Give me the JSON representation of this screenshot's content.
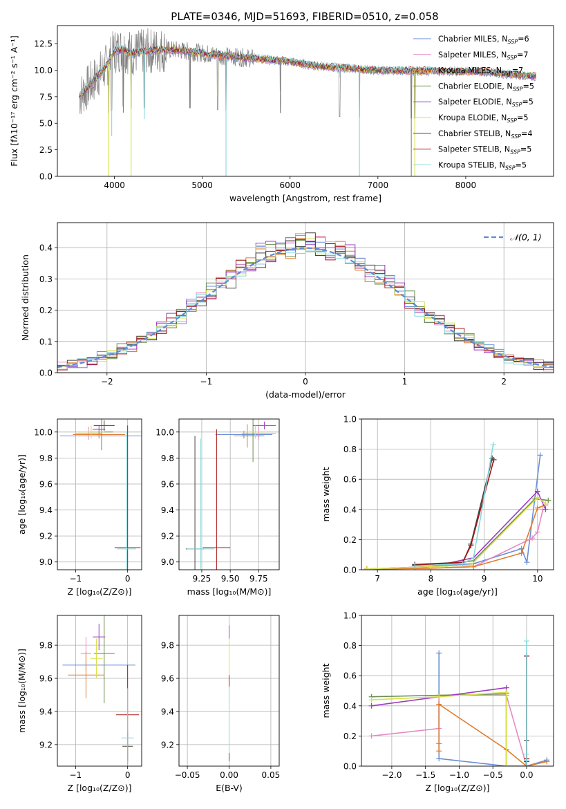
{
  "figure_title": "PLATE=0346, MJD=51693, FIBERID=0510, z=0.058",
  "colors": {
    "Chabrier MILES": "#6a8ed8",
    "Salpeter MILES": "#e58ac4",
    "Kroupa MILES": "#e07b2c",
    "Chabrier ELODIE": "#6b8e4e",
    "Salpeter ELODIE": "#9b3cc0",
    "Kroupa ELODIE": "#d8e04a",
    "Chabrier STELIB": "#444444",
    "Salpeter STELIB": "#a81818",
    "Kroupa STELIB": "#86d8dc",
    "gaussian": "#5b8ad6"
  },
  "chart_data": [
    {
      "type": "line",
      "panel": "spectrum",
      "title": "PLATE=0346, MJD=51693, FIBERID=0510, z=0.058",
      "xlabel": "wavelength [Angstrom, rest frame]",
      "ylabel": "Flux [fλ10⁻¹⁷ erg cm⁻² s⁻¹ A⁻¹]",
      "xlim": [
        3350,
        9000
      ],
      "ylim": [
        0,
        14.2
      ],
      "xticks": [
        4000,
        5000,
        6000,
        7000,
        8000
      ],
      "yticks": [
        0.0,
        2.5,
        5.0,
        7.5,
        10.0,
        12.5
      ],
      "legend_position": "top-right",
      "legend": [
        {
          "label": "Chabrier MILES, N",
          "sub": "SSP",
          "tail": "=6"
        },
        {
          "label": "Salpeter MILES, N",
          "sub": "SSP",
          "tail": "=7"
        },
        {
          "label": "Kroupa MILES, N",
          "sub": "SSP",
          "tail": "=7"
        },
        {
          "label": "Chabrier ELODIE, N",
          "sub": "SSP",
          "tail": "=5"
        },
        {
          "label": "Salpeter ELODIE, N",
          "sub": "SSP",
          "tail": "=5"
        },
        {
          "label": "Kroupa ELODIE, N",
          "sub": "SSP",
          "tail": "=5"
        },
        {
          "label": "Chabrier STELIB, N",
          "sub": "SSP",
          "tail": "=4"
        },
        {
          "label": "Salpeter STELIB, N",
          "sub": "SSP",
          "tail": "=5"
        },
        {
          "label": "Kroupa STELIB, N",
          "sub": "SSP",
          "tail": "=5"
        }
      ],
      "continuum": {
        "x": [
          3600,
          3700,
          3800,
          3900,
          4000,
          4100,
          4200,
          4300,
          4400,
          4500,
          4700,
          5000,
          5300,
          5600,
          6000,
          6300,
          6600,
          7000,
          7400,
          7800,
          8200,
          8500,
          8800
        ],
        "y": [
          7.5,
          8.4,
          9.4,
          10.3,
          11.8,
          12.0,
          11.6,
          11.7,
          11.8,
          11.9,
          11.9,
          11.6,
          11.3,
          11.1,
          10.8,
          10.4,
          10.2,
          10.0,
          9.95,
          9.9,
          9.85,
          9.6,
          9.4
        ]
      },
      "absorption_lines": [
        {
          "x": 3934,
          "y": 0.0
        },
        {
          "x": 3969,
          "y": 3.8
        },
        {
          "x": 4101,
          "y": 6.0
        },
        {
          "x": 4190,
          "y": 0.0
        },
        {
          "x": 4340,
          "y": 5.4
        },
        {
          "x": 4861,
          "y": 6.4
        },
        {
          "x": 5175,
          "y": 7.6
        },
        {
          "x": 5270,
          "y": 0.0
        },
        {
          "x": 5890,
          "y": 8.0
        },
        {
          "x": 6563,
          "y": 9.3
        },
        {
          "x": 6790,
          "y": 0.0
        },
        {
          "x": 7380,
          "y": 0.0
        },
        {
          "x": 7420,
          "y": 0.0
        }
      ]
    },
    {
      "type": "line",
      "panel": "residual_histogram",
      "xlabel": "(data-model)/error",
      "ylabel": "Normed distribution",
      "xlim": [
        -2.5,
        2.5
      ],
      "ylim": [
        0,
        0.48
      ],
      "xticks": [
        -2,
        -1,
        0,
        1,
        2
      ],
      "yticks": [
        0.0,
        0.1,
        0.2,
        0.3,
        0.4
      ],
      "grid": true,
      "legend_position": "top-right",
      "gaussian_label": "𝒩(0, 1)",
      "bin_width": 0.1
    },
    {
      "type": "scatter",
      "panel": "age_vs_Z",
      "xlabel": "Z [log₁₀(Z/Z⊙)]",
      "ylabel": "age  [log₁₀(age/yr)]",
      "xlim": [
        -1.35,
        0.27
      ],
      "ylim": [
        8.94,
        10.1
      ],
      "xticks": [
        -1,
        0
      ],
      "yticks": [
        9.0,
        9.2,
        9.4,
        9.6,
        9.8,
        10.0
      ],
      "grid": true,
      "points": [
        {
          "s": "Chabrier MILES",
          "x": -0.5,
          "y": 9.97,
          "xerr": 0.8,
          "yerr": 0.03
        },
        {
          "s": "Salpeter MILES",
          "x": -0.75,
          "y": 9.99,
          "xerr": 0.25,
          "yerr": 0.05
        },
        {
          "s": "Kroupa MILES",
          "x": -0.55,
          "y": 9.98,
          "xerr": 0.5,
          "yerr": 0.03
        },
        {
          "s": "Chabrier ELODIE",
          "x": -0.5,
          "y": 10.0,
          "xerr": 0.22,
          "yerr": 0.14
        },
        {
          "s": "Salpeter ELODIE",
          "x": -0.55,
          "y": 10.02,
          "xerr": 0.12,
          "yerr": 0.03
        },
        {
          "s": "Kroupa ELODIE",
          "x": -0.7,
          "y": 10.0,
          "xerr": 0.25,
          "yerr": 0.05
        },
        {
          "s": "Chabrier STELIB",
          "x": -0.45,
          "y": 10.05,
          "xerr": 0.2,
          "yerr": 0.04
        },
        {
          "s": "Salpeter STELIB",
          "x": 0.0,
          "y": 9.11,
          "xerr": 0.25,
          "yerr": 0.94
        },
        {
          "s": "Kroupa STELIB",
          "x": -0.02,
          "y": 9.1,
          "xerr": 0.18,
          "yerr": 0.9
        }
      ]
    },
    {
      "type": "scatter",
      "panel": "age_vs_mass",
      "xlabel": "mass [log₁₀(M/M⊙)]",
      "ylabel": "",
      "xlim": [
        9.05,
        9.93
      ],
      "ylim": [
        8.94,
        10.1
      ],
      "xticks": [
        9.25,
        9.5,
        9.75
      ],
      "yticks": [
        9.0,
        9.2,
        9.4,
        9.6,
        9.8,
        10.0
      ],
      "grid": true,
      "points": [
        {
          "s": "Chabrier MILES",
          "x": 9.62,
          "y": 9.98,
          "xerr": 0.25,
          "yerr": 0.03
        },
        {
          "s": "Salpeter MILES",
          "x": 9.75,
          "y": 9.99,
          "xerr": 0.15,
          "yerr": 0.05
        },
        {
          "s": "Kroupa MILES",
          "x": 9.65,
          "y": 9.97,
          "xerr": 0.12,
          "yerr": 0.09
        },
        {
          "s": "Chabrier ELODIE",
          "x": 9.7,
          "y": 9.97,
          "xerr": 0.1,
          "yerr": 0.2
        },
        {
          "s": "Salpeter ELODIE",
          "x": 9.8,
          "y": 10.05,
          "xerr": 0.1,
          "yerr": 0.03
        },
        {
          "s": "Kroupa ELODIE",
          "x": 9.72,
          "y": 10.0,
          "xerr": 0.1,
          "yerr": 0.05
        },
        {
          "s": "Chabrier STELIB",
          "x": 9.19,
          "y": 9.1,
          "xerr": 0.08,
          "yerr": 0.87
        },
        {
          "s": "Salpeter STELIB",
          "x": 9.38,
          "y": 9.11,
          "xerr": 0.12,
          "yerr": 0.91
        },
        {
          "s": "Kroupa STELIB",
          "x": 9.24,
          "y": 9.1,
          "xerr": 0.12,
          "yerr": 0.85
        }
      ]
    },
    {
      "type": "line",
      "panel": "mass_weight_vs_age",
      "xlabel": "age  [log₁₀(age/yr)]",
      "ylabel": "mass weight",
      "xlim": [
        6.7,
        10.3
      ],
      "ylim": [
        0,
        1.0
      ],
      "xticks": [
        7,
        8,
        9,
        10
      ],
      "yticks": [
        0.0,
        0.2,
        0.4,
        0.6,
        0.8,
        1.0
      ],
      "grid": true,
      "series": [
        {
          "name": "Chabrier MILES",
          "x": [
            6.8,
            7.7,
            8.3,
            8.8,
            9.7,
            9.8,
            10.05
          ],
          "y": [
            0.005,
            0.01,
            0.03,
            0.04,
            0.14,
            0.05,
            0.76
          ]
        },
        {
          "name": "Salpeter MILES",
          "x": [
            6.8,
            8.0,
            8.8,
            9.9,
            10.0,
            10.1
          ],
          "y": [
            0.005,
            0.01,
            0.02,
            0.21,
            0.25,
            0.4
          ]
        },
        {
          "name": "Kroupa MILES",
          "x": [
            6.8,
            8.0,
            8.8,
            9.7,
            10.0,
            10.15
          ],
          "y": [
            0.005,
            0.01,
            0.02,
            0.11,
            0.41,
            0.43
          ]
        },
        {
          "name": "Chabrier ELODIE",
          "x": [
            6.8,
            8.0,
            8.8,
            9.95,
            10.2
          ],
          "y": [
            0.005,
            0.02,
            0.06,
            0.47,
            0.46
          ]
        },
        {
          "name": "Salpeter ELODIE",
          "x": [
            6.8,
            8.0,
            8.8,
            10.0,
            10.15
          ],
          "y": [
            0.005,
            0.02,
            0.08,
            0.52,
            0.4
          ]
        },
        {
          "name": "Kroupa ELODIE",
          "x": [
            6.8,
            8.0,
            8.75,
            10.0,
            10.15
          ],
          "y": [
            0.005,
            0.02,
            0.03,
            0.48,
            0.44
          ]
        },
        {
          "name": "Chabrier STELIB",
          "x": [
            7.7,
            8.6,
            8.75,
            9.15
          ],
          "y": [
            0.035,
            0.05,
            0.17,
            0.74
          ]
        },
        {
          "name": "Salpeter STELIB",
          "x": [
            7.7,
            8.6,
            8.75,
            9.18
          ],
          "y": [
            0.03,
            0.05,
            0.16,
            0.73
          ]
        },
        {
          "name": "Kroupa STELIB",
          "x": [
            7.7,
            8.6,
            8.8,
            9.17
          ],
          "y": [
            0.025,
            0.04,
            0.08,
            0.83
          ]
        }
      ]
    },
    {
      "type": "scatter",
      "panel": "mass_vs_Z",
      "xlabel": "Z [log₁₀(Z/Z⊙)]",
      "ylabel": "mass [log₁₀(M/M⊙)]",
      "xlim": [
        -1.35,
        0.27
      ],
      "ylim": [
        9.07,
        9.98
      ],
      "xticks": [
        -1,
        0
      ],
      "yticks": [
        9.2,
        9.4,
        9.6,
        9.8
      ],
      "grid": true,
      "points": [
        {
          "s": "Chabrier MILES",
          "x": -0.55,
          "y": 9.68,
          "xerr": 0.7,
          "yerr": 0.0
        },
        {
          "s": "Salpeter MILES",
          "x": -0.8,
          "y": 9.75,
          "xerr": 0.1,
          "yerr": 0.1
        },
        {
          "s": "Kroupa MILES",
          "x": -0.8,
          "y": 9.62,
          "xerr": 0.35,
          "yerr": 0.14
        },
        {
          "s": "Chabrier ELODIE",
          "x": -0.45,
          "y": 9.75,
          "xerr": 0.2,
          "yerr": 0.3
        },
        {
          "s": "Salpeter ELODIE",
          "x": -0.55,
          "y": 9.85,
          "xerr": 0.12,
          "yerr": 0.08
        },
        {
          "s": "Kroupa ELODIE",
          "x": -0.6,
          "y": 9.72,
          "xerr": 0.12,
          "yerr": 0.12
        },
        {
          "s": "Chabrier STELIB",
          "x": 0.0,
          "y": 9.19,
          "xerr": 0.1,
          "yerr": 0.09
        },
        {
          "s": "Salpeter STELIB",
          "x": 0.0,
          "y": 9.38,
          "xerr": 0.22,
          "yerr": 0.3
        },
        {
          "s": "Kroupa STELIB",
          "x": 0.0,
          "y": 9.24,
          "xerr": 0.12,
          "yerr": 0.3
        }
      ]
    },
    {
      "type": "scatter",
      "panel": "mass_vs_EBV",
      "xlabel": "E(B-V)",
      "ylabel": "",
      "xlim": [
        -0.06,
        0.06
      ],
      "ylim": [
        9.07,
        9.98
      ],
      "xticks": [
        -0.05,
        0.0,
        0.05
      ],
      "yticks": [
        9.2,
        9.4,
        9.6,
        9.8
      ],
      "grid": true,
      "points": [
        {
          "s": "Chabrier MILES",
          "x": 0.0,
          "y": 9.68,
          "xerr": 0.0,
          "yerr": 0.17
        },
        {
          "s": "Salpeter MILES",
          "x": 0.0,
          "y": 9.75,
          "xerr": 0.0,
          "yerr": 0.1
        },
        {
          "s": "Kroupa MILES",
          "x": 0.0,
          "y": 9.62,
          "xerr": 0.0,
          "yerr": 0.14
        },
        {
          "s": "Chabrier ELODIE",
          "x": 0.0,
          "y": 9.72,
          "xerr": 0.0,
          "yerr": 0.16
        },
        {
          "s": "Salpeter ELODIE",
          "x": 0.0,
          "y": 9.85,
          "xerr": 0.0,
          "yerr": 0.07
        },
        {
          "s": "Kroupa ELODIE",
          "x": 0.0,
          "y": 9.72,
          "xerr": 0.0,
          "yerr": 0.12
        },
        {
          "s": "Chabrier STELIB",
          "x": 0.0,
          "y": 9.19,
          "xerr": 0.0,
          "yerr": 0.09
        },
        {
          "s": "Salpeter STELIB",
          "x": 0.0,
          "y": 9.5,
          "xerr": 0.0,
          "yerr": 0.12
        },
        {
          "s": "Kroupa STELIB",
          "x": 0.0,
          "y": 9.35,
          "xerr": 0.0,
          "yerr": 0.2
        }
      ]
    },
    {
      "type": "line",
      "panel": "mass_weight_vs_Z",
      "xlabel": "Z [log₁₀(Z/Z⊙)]",
      "ylabel": "mass weight",
      "xlim": [
        -2.45,
        0.4
      ],
      "ylim": [
        0,
        1.0
      ],
      "xticks": [
        -2.0,
        -1.5,
        -1.0,
        -0.5,
        0.0
      ],
      "yticks": [
        0.0,
        0.2,
        0.4,
        0.6,
        0.8,
        1.0
      ],
      "grid": true,
      "series": [
        {
          "name": "Chabrier MILES",
          "x": [
            -1.3,
            -1.3,
            -0.3,
            0.0,
            0.3
          ],
          "y": [
            0.75,
            0.05,
            0.0,
            0.0,
            0.04
          ]
        },
        {
          "name": "Salpeter MILES",
          "x": [
            -2.3,
            -1.3,
            -1.3,
            -0.3,
            0.0
          ],
          "y": [
            0.2,
            0.25,
            0.47,
            0.47,
            0.0
          ]
        },
        {
          "name": "Kroupa MILES",
          "x": [
            -1.3,
            -1.3,
            -1.3,
            -0.3,
            0.0,
            0.3
          ],
          "y": [
            0.1,
            0.15,
            0.41,
            0.11,
            0.0,
            0.03
          ]
        },
        {
          "name": "Chabrier ELODIE",
          "x": [
            -2.3,
            -1.3,
            -0.3,
            -0.3,
            0.0
          ],
          "y": [
            0.46,
            0.47,
            0.48,
            0.0,
            0.0
          ]
        },
        {
          "name": "Salpeter ELODIE",
          "x": [
            -2.3,
            -1.3,
            -0.3,
            -0.3,
            0.0
          ],
          "y": [
            0.4,
            0.46,
            0.52,
            0.0,
            0.0
          ]
        },
        {
          "name": "Kroupa ELODIE",
          "x": [
            -2.3,
            -1.3,
            -0.3,
            -0.3,
            0.0
          ],
          "y": [
            0.44,
            0.46,
            0.49,
            0.0,
            0.0
          ]
        },
        {
          "name": "Chabrier STELIB",
          "x": [
            0.0,
            0.0,
            0.0,
            0.0
          ],
          "y": [
            0.03,
            0.17,
            0.73,
            0.0
          ]
        },
        {
          "name": "Salpeter STELIB",
          "x": [
            0.0,
            0.0,
            0.0
          ],
          "y": [
            0.0,
            0.05,
            0.73
          ]
        },
        {
          "name": "Kroupa STELIB",
          "x": [
            0.0,
            0.0,
            0.0,
            0.0
          ],
          "y": [
            0.04,
            0.08,
            0.83,
            0.0
          ]
        }
      ]
    }
  ]
}
